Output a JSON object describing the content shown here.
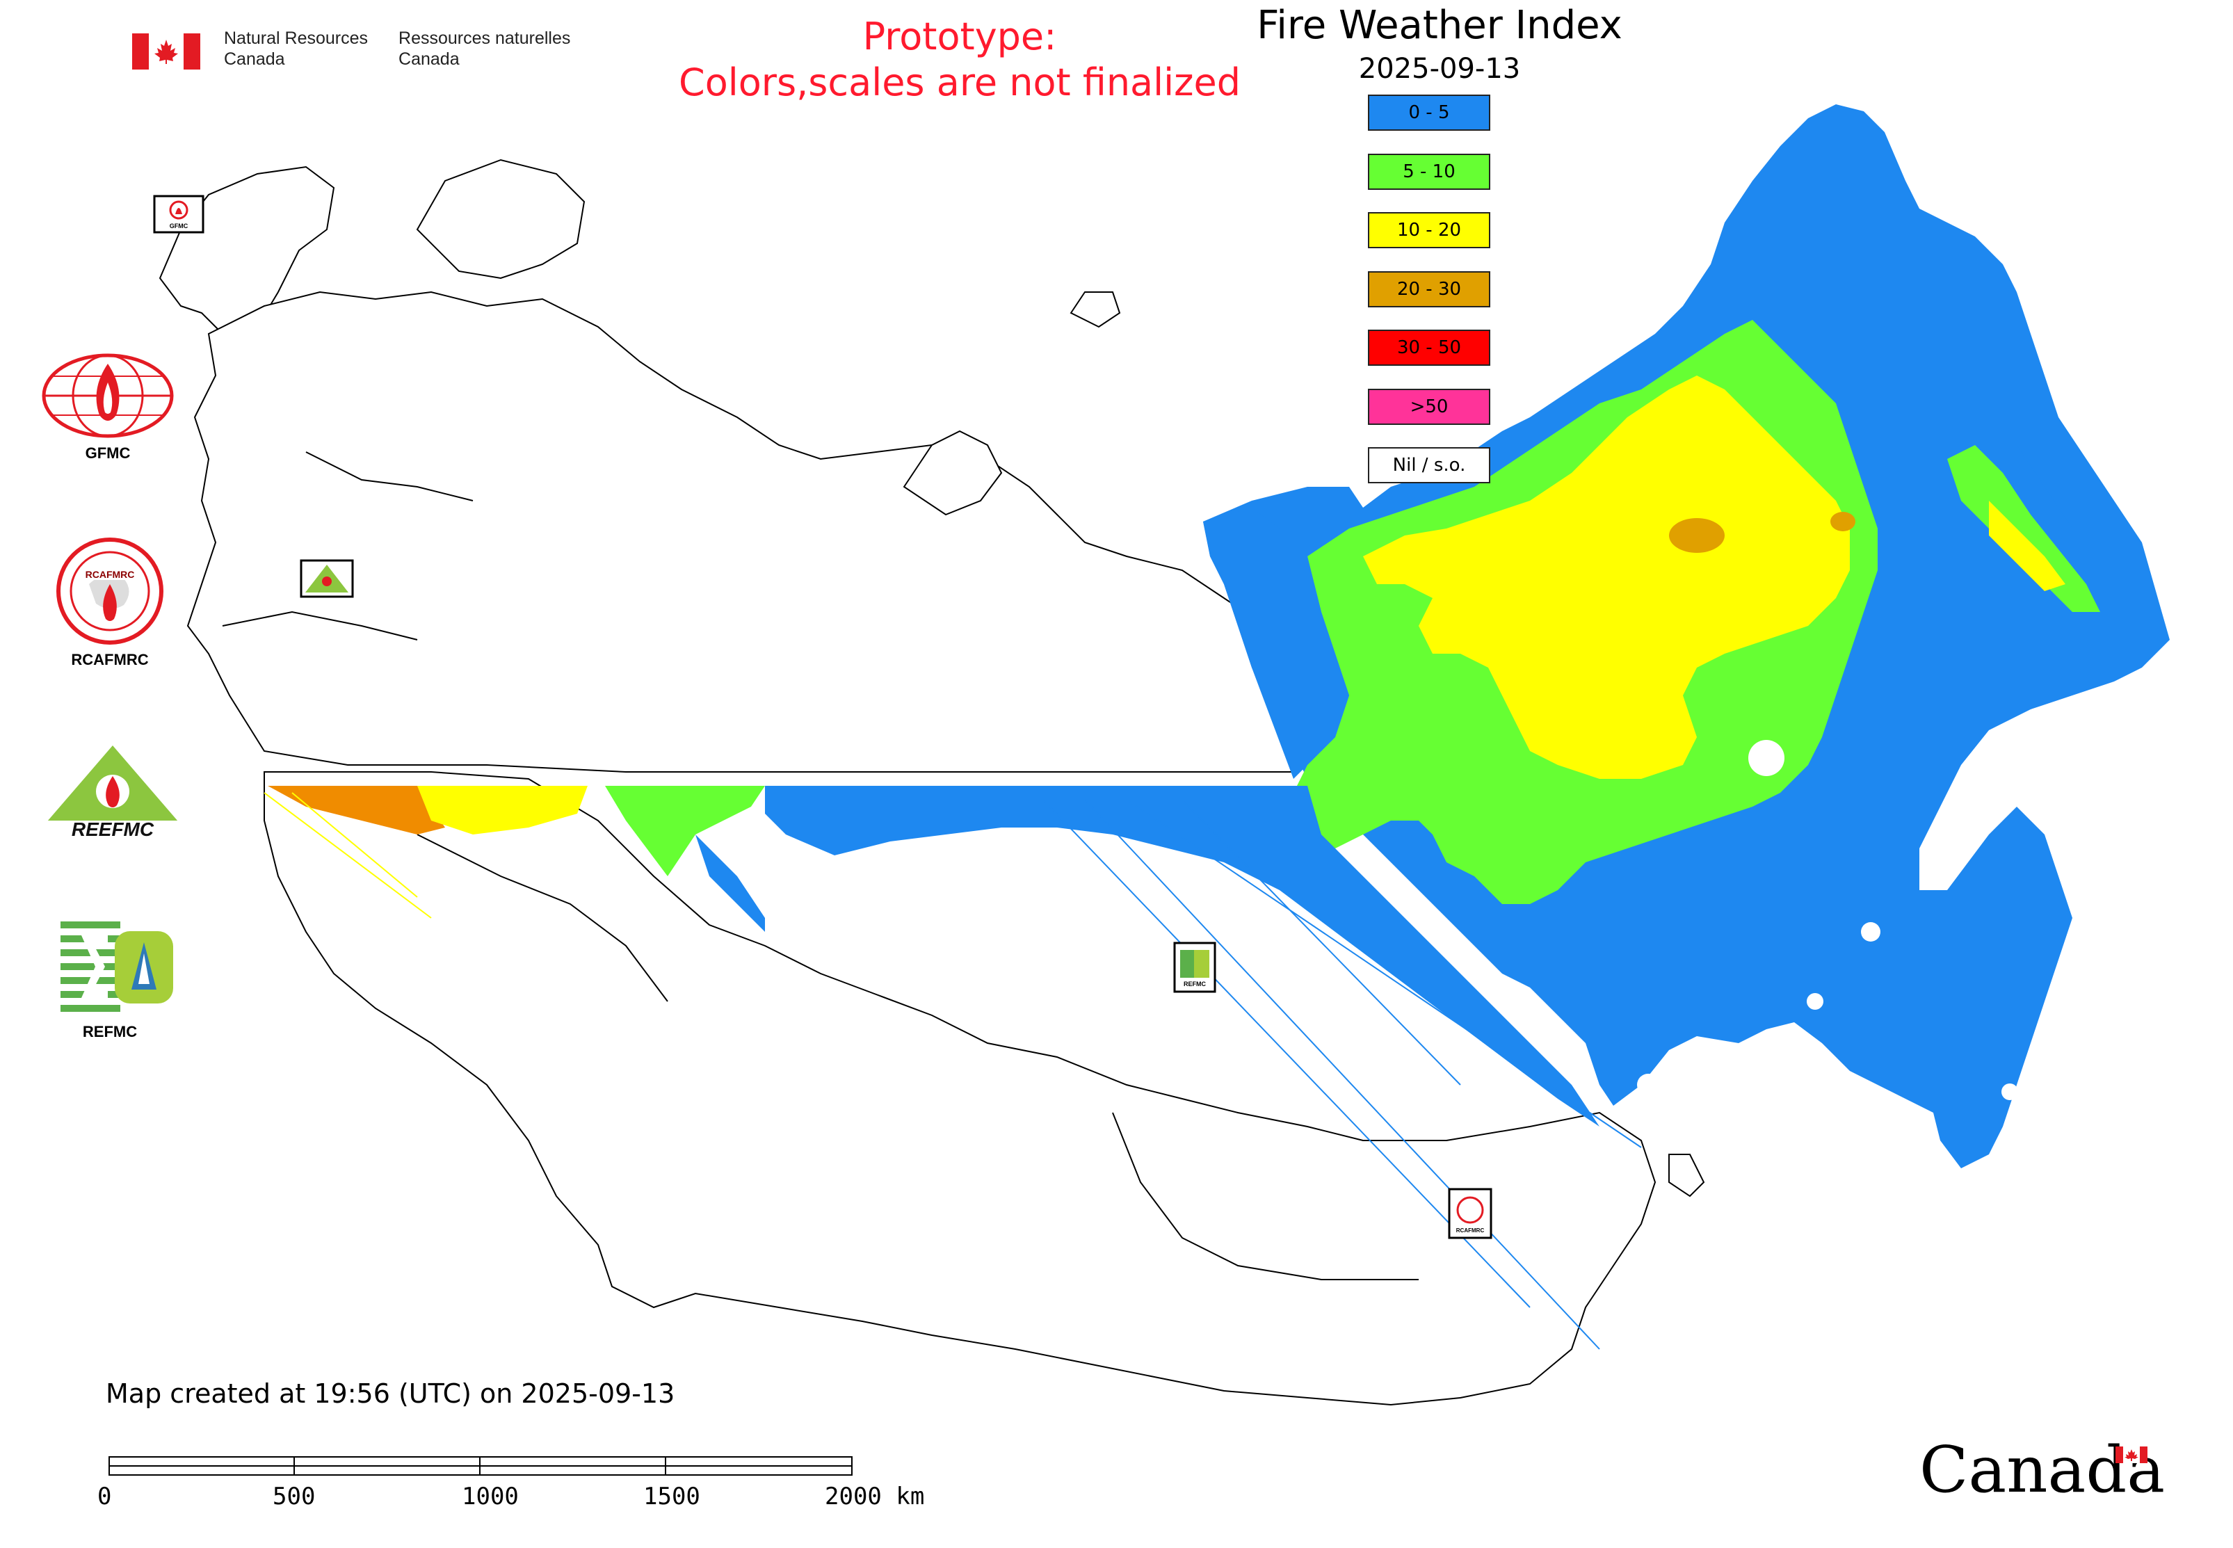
{
  "header": {
    "gov_en_line1": "Natural Resources",
    "gov_en_line2": "Canada",
    "gov_fr_line1": "Ressources naturelles",
    "gov_fr_line2": "Canada",
    "prototype_line1": "Prototype:",
    "prototype_line2": "Colors,scales are not finalized",
    "prototype_color": "#ff1a2e"
  },
  "map_title": "Fire Weather Index",
  "map_date": "2025-09-13",
  "legend": [
    {
      "label": "0 - 5",
      "color": "#1e88f0"
    },
    {
      "label": "5 - 10",
      "color": "#66ff33"
    },
    {
      "label": "10 - 20",
      "color": "#ffff00"
    },
    {
      "label": "20 - 30",
      "color": "#e0a000"
    },
    {
      "label": "30 - 50",
      "color": "#ff0000"
    },
    {
      "label": ">50",
      "color": "#ff3399"
    },
    {
      "label": "Nil / s.o.",
      "color": "#ffffff"
    }
  ],
  "side_logos": [
    {
      "label": "GFMC",
      "icon": "gfmc-logo-icon"
    },
    {
      "label": "RCAFMRC",
      "icon": "rcafmrc-logo-icon"
    },
    {
      "label": "",
      "icon": "reefmc-logo-icon"
    },
    {
      "label": "REFMC",
      "icon": "refmc-logo-icon"
    }
  ],
  "logo_texts": {
    "reefmc": "REEFMC",
    "gfmc_small": "GFMC",
    "refmc_small": "REFMC",
    "rcafmrc_small": "RCAFMRC"
  },
  "footer": {
    "created": "Map created at 19:56 (UTC) on 2025-09-13",
    "wordmark": "Canada"
  },
  "scale_bar": {
    "ticks": [
      "0",
      "500",
      "1000",
      "1500",
      "2000 km"
    ]
  },
  "colors": {
    "flag_red": "#e31b23",
    "border": "#000000"
  }
}
